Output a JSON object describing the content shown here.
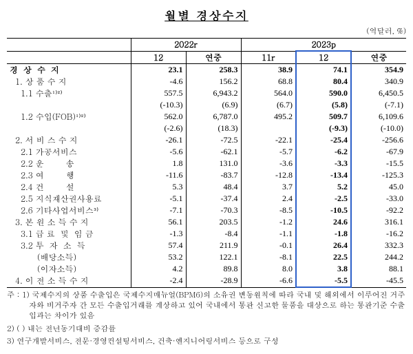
{
  "title": "월별 경상수지",
  "unit": "(억달러, %)",
  "header": {
    "group1": "2022r",
    "group2": "2023p",
    "sub": {
      "c1": "12",
      "c2": "연중",
      "c3": "11r",
      "c4": "12",
      "c5": "연중"
    }
  },
  "rows": [
    {
      "label": "경 상 수 지",
      "bold": true,
      "spaced": true,
      "v": [
        "23.1",
        "258.3",
        "38.9",
        "74.1",
        "354.9"
      ]
    },
    {
      "label": "  1. 상 품 수 지",
      "v": [
        "-4.6",
        "156.2",
        "68.8",
        "80.4",
        "340.9"
      ]
    },
    {
      "label": "    1.1 수출¹⁾²⁾",
      "v": [
        "557.5",
        "6,943.2",
        "564.0",
        "590.0",
        "6,450.5"
      ]
    },
    {
      "label": "",
      "v": [
        "(-10.3)",
        "(6.9)",
        "(6.7)",
        "(5.8)",
        "(-7.1)"
      ]
    },
    {
      "label": "    1.2 수입(FOB)¹⁾²⁾",
      "v": [
        "562.0",
        "6,787.0",
        "495.2",
        "509.7",
        "6,109.6"
      ]
    },
    {
      "label": "",
      "v": [
        "(-2.6)",
        "(18.3)",
        "",
        "(-9.3)",
        "(-10.0)"
      ]
    },
    {
      "label": "  2. 서 비 스 수 지",
      "v": [
        "-26.1",
        "-72.5",
        "-22.1",
        "-25.4",
        "-256.6"
      ]
    },
    {
      "label": "    2.1 가공서비스",
      "v": [
        "-5.6",
        "-62.1",
        "-5.7",
        "-6.2",
        "-67.9"
      ]
    },
    {
      "label": "    2.2 운        송",
      "v": [
        "1.8",
        "131.0",
        "-3.6",
        "-3.3",
        "-15.5"
      ]
    },
    {
      "label": "    2.3 여        행",
      "v": [
        "-11.6",
        "-83.7",
        "-12.8",
        "-13.4",
        "-125.3"
      ]
    },
    {
      "label": "    2.4 건        설",
      "v": [
        "5.3",
        "48.4",
        "3.7",
        "5.2",
        "45.0"
      ]
    },
    {
      "label": "    2.5 지식재산권사용료",
      "v": [
        "-5.1",
        "-37.4",
        "2.4",
        "-2.5",
        "-33.0"
      ]
    },
    {
      "label": "    2.6 기타사업서비스³⁾",
      "v": [
        "-7.1",
        "-70.3",
        "-8.5",
        "-10.5",
        "-92.2"
      ]
    },
    {
      "label": "  3. 본 원 소 득 수 지",
      "v": [
        "56.1",
        "203.5",
        "-1.2",
        "24.6",
        "316.1"
      ]
    },
    {
      "label": "    3.1 급 료  및  임 금",
      "v": [
        "-1.3",
        "-8.4",
        "-1.1",
        "-1.8",
        "-16.2"
      ]
    },
    {
      "label": "    3.2 투  자  소  득",
      "v": [
        "57.4",
        "211.9",
        "-0.1",
        "26.4",
        "332.3"
      ]
    },
    {
      "label": "          (배당소득)",
      "v": [
        "53.2",
        "122.1",
        "-8.1",
        "22.5",
        "244.2"
      ]
    },
    {
      "label": "          (이자소득)",
      "v": [
        "4.2",
        "89.8",
        "8.0",
        "3.8",
        "88.1"
      ]
    },
    {
      "label": "  4. 이 전 소 득 수 지",
      "v": [
        "-2.4",
        "-28.9",
        "-6.6",
        "-5.5",
        "-45.5"
      ]
    }
  ],
  "footnotes": [
    "주 : 1) 국제수지의 상품 수출입은 국제수지매뉴얼(BPM6)의 소유권 변동원칙에 따라 국내 및 해외에서 이루어진 거주자와 비거주자 간 모든 수출입거래를 계상하고 있어 국내에서 통관 신고한 물품을 대상으로 하는 통관기준 수출입과는 차이가 있음",
    "     2) (  ) 내는 전년동기대비 증감률",
    "     3) 연구개발서비스, 전문·경영컨설팅서비스, 건축·엔지니어링서비스 등으로 구성"
  ]
}
